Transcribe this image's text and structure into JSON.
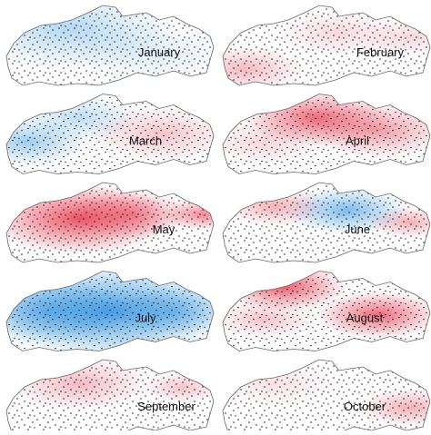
{
  "maps": [
    {
      "label": "January"
    },
    {
      "label": "February"
    },
    {
      "label": "March"
    },
    {
      "label": "April"
    },
    {
      "label": "May"
    },
    {
      "label": "June"
    },
    {
      "label": "July"
    },
    {
      "label": "August"
    },
    {
      "label": "September"
    },
    {
      "label": "October"
    }
  ]
}
